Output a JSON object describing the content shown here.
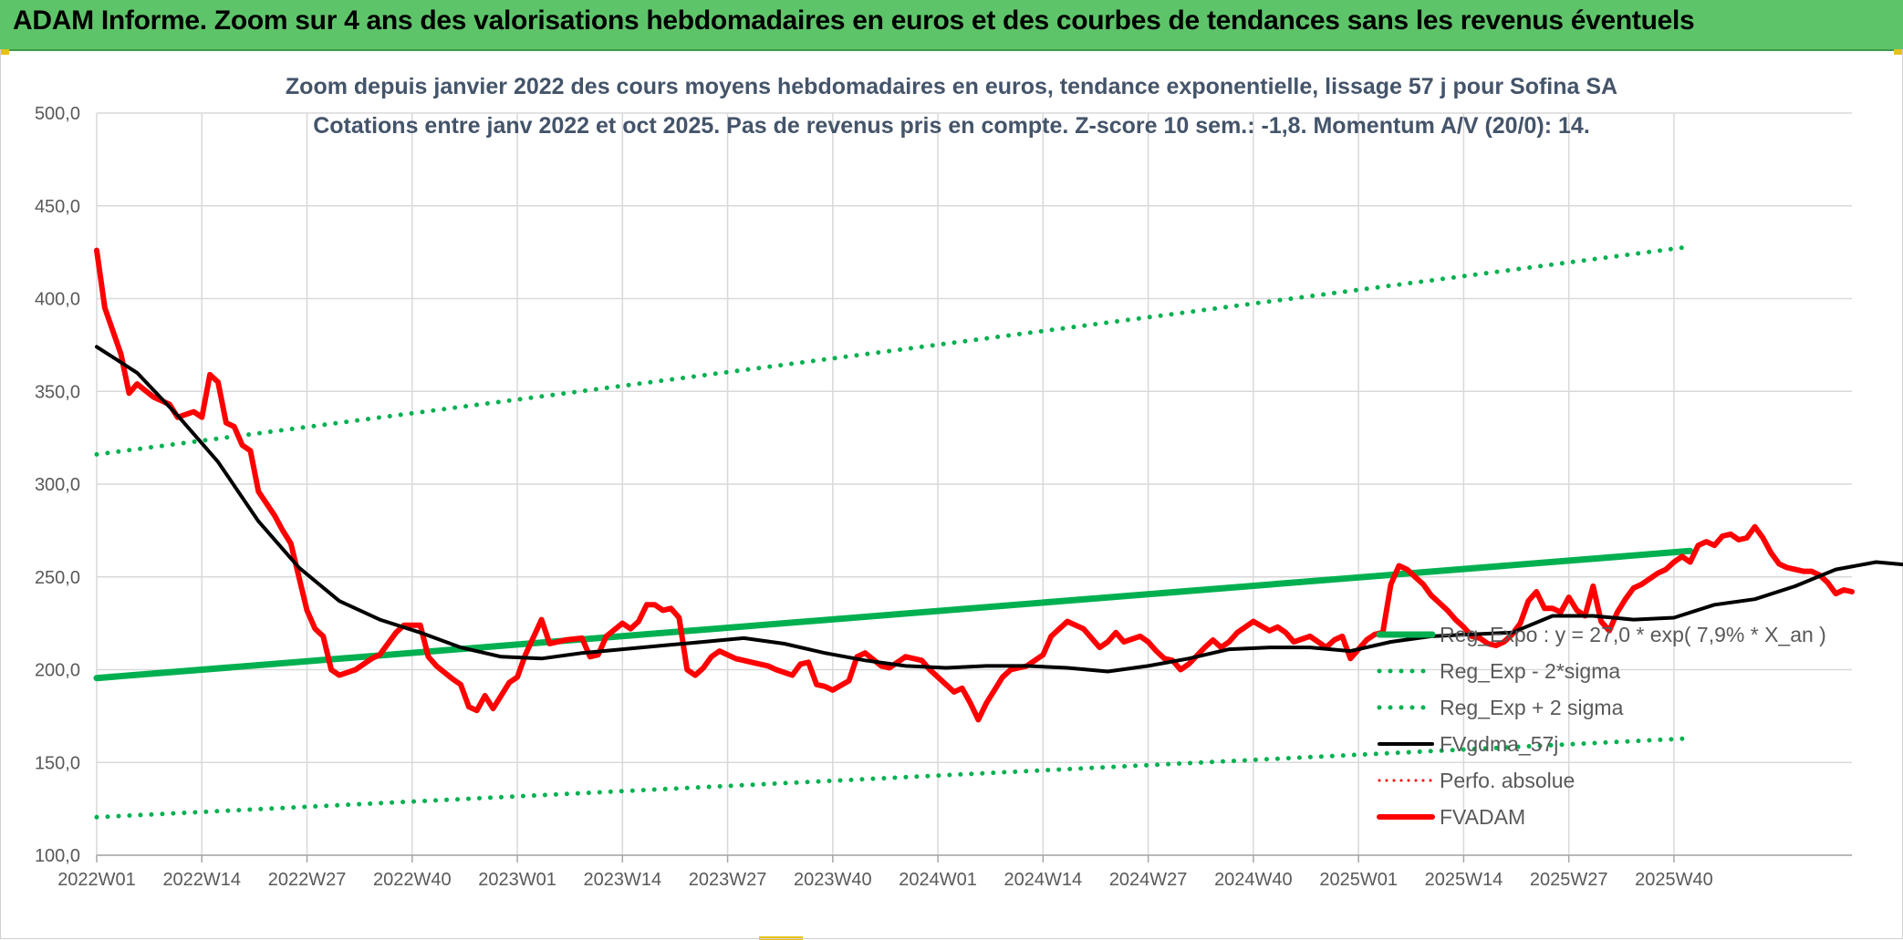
{
  "header": {
    "title": "ADAM Informe. Zoom sur 4 ans des valorisations hebdomadaires en euros et des courbes de tendances sans les revenus éventuels"
  },
  "colors": {
    "header_bg": "#5ec46a",
    "green": "#00b050",
    "red": "#ff0000",
    "black": "#000000",
    "grid": "#d9d9d9",
    "axis_text": "#595959",
    "title_text": "#44546a"
  },
  "chart_data": {
    "type": "line",
    "title": "Zoom depuis janvier 2022 des cours moyens hebdomadaires en euros, tendance exponentielle, lissage 57 j pour Sofina SA",
    "subtitle": "Cotations entre janv 2022 et oct 2025. Pas de revenus pris en compte. Z-score 10 sem.: -1,8. Momentum A/V (20/0): 14.",
    "xlabel": "",
    "ylabel": "",
    "ylim": [
      100,
      500
    ],
    "y_ticks": [
      "100,0",
      "150,0",
      "200,0",
      "250,0",
      "300,0",
      "350,0",
      "400,0",
      "450,0",
      "500,0"
    ],
    "x_ticks": [
      "2022W01",
      "2022W14",
      "2022W27",
      "2022W40",
      "2023W01",
      "2023W14",
      "2023W27",
      "2023W40",
      "2024W01",
      "2024W14",
      "2024W27",
      "2024W40",
      "2025W01",
      "2025W14",
      "2025W27",
      "2025W40"
    ],
    "x_count": 198,
    "grid": true,
    "legend_position": "right",
    "legend": [
      {
        "name": "Reg_Expo : y = 27,0 * exp( 7,9% *  X_an )",
        "style": "solid",
        "color": "#00b050",
        "width": 7
      },
      {
        "name": "Reg_Exp - 2*sigma",
        "style": "dotted",
        "color": "#00b050",
        "width": 5
      },
      {
        "name": "Reg_Exp + 2 sigma",
        "style": "dotted",
        "color": "#00b050",
        "width": 5
      },
      {
        "name": "FVgdma_57j",
        "style": "solid",
        "color": "#000000",
        "width": 4
      },
      {
        "name": "Perfo. absolue",
        "style": "dotted",
        "color": "#ff0000",
        "width": 3
      },
      {
        "name": "FVADAM",
        "style": "solid",
        "color": "#ff0000",
        "width": 6
      }
    ],
    "series": [
      {
        "name": "Reg_Expo : y = 27,0 * exp( 7,9% *  X_an )",
        "points": [
          [
            0,
            195.5
          ],
          [
            197,
            264
          ]
        ]
      },
      {
        "name": "Reg_Exp - 2*sigma",
        "points": [
          [
            0,
            120.5
          ],
          [
            197,
            163
          ]
        ]
      },
      {
        "name": "Reg_Exp + 2 sigma",
        "points": [
          [
            0,
            316
          ],
          [
            197,
            428
          ]
        ]
      },
      {
        "name": "FVgdma_57j",
        "points": [
          [
            0,
            374
          ],
          [
            5,
            360
          ],
          [
            10,
            337
          ],
          [
            15,
            312
          ],
          [
            20,
            280
          ],
          [
            25,
            255
          ],
          [
            30,
            237
          ],
          [
            35,
            227
          ],
          [
            40,
            220
          ],
          [
            45,
            212
          ],
          [
            50,
            207
          ],
          [
            55,
            206
          ],
          [
            60,
            209
          ],
          [
            65,
            211
          ],
          [
            70,
            213
          ],
          [
            75,
            215
          ],
          [
            80,
            217
          ],
          [
            85,
            214
          ],
          [
            90,
            209
          ],
          [
            95,
            205
          ],
          [
            100,
            202
          ],
          [
            105,
            201
          ],
          [
            110,
            202
          ],
          [
            115,
            202
          ],
          [
            120,
            201
          ],
          [
            125,
            199
          ],
          [
            130,
            202
          ],
          [
            135,
            206
          ],
          [
            140,
            211
          ],
          [
            145,
            212
          ],
          [
            150,
            212
          ],
          [
            155,
            210
          ],
          [
            160,
            215
          ],
          [
            165,
            218
          ],
          [
            170,
            219
          ],
          [
            175,
            220
          ],
          [
            180,
            229
          ],
          [
            185,
            229
          ],
          [
            190,
            227
          ],
          [
            195,
            228
          ],
          [
            200,
            235
          ],
          [
            205,
            238
          ],
          [
            210,
            245
          ],
          [
            215,
            254
          ],
          [
            220,
            258
          ],
          [
            225,
            256
          ],
          [
            230,
            248
          ],
          [
            232,
            247
          ]
        ]
      },
      {
        "name": "FVADAM",
        "points": [
          [
            0,
            426
          ],
          [
            1,
            395
          ],
          [
            3,
            370
          ],
          [
            4,
            349
          ],
          [
            5,
            354
          ],
          [
            7,
            347
          ],
          [
            9,
            343
          ],
          [
            10,
            336
          ],
          [
            12,
            339
          ],
          [
            13,
            336
          ],
          [
            14,
            359
          ],
          [
            15,
            355
          ],
          [
            16,
            333
          ],
          [
            17,
            331
          ],
          [
            18,
            321
          ],
          [
            19,
            318
          ],
          [
            20,
            296
          ],
          [
            22,
            283
          ],
          [
            23,
            275
          ],
          [
            24,
            268
          ],
          [
            26,
            232
          ],
          [
            27,
            222
          ],
          [
            28,
            218
          ],
          [
            29,
            200
          ],
          [
            30,
            197
          ],
          [
            32,
            200
          ],
          [
            34,
            206
          ],
          [
            35,
            208
          ],
          [
            37,
            220
          ],
          [
            38,
            224
          ],
          [
            40,
            224
          ],
          [
            41,
            207
          ],
          [
            42,
            202
          ],
          [
            44,
            195
          ],
          [
            45,
            192
          ],
          [
            46,
            180
          ],
          [
            47,
            178
          ],
          [
            48,
            186
          ],
          [
            49,
            179
          ],
          [
            51,
            193
          ],
          [
            52,
            196
          ],
          [
            53,
            208
          ],
          [
            55,
            227
          ],
          [
            56,
            214
          ],
          [
            58,
            216
          ],
          [
            60,
            217
          ],
          [
            61,
            207
          ],
          [
            62,
            208
          ],
          [
            63,
            218
          ],
          [
            65,
            225
          ],
          [
            66,
            222
          ],
          [
            67,
            226
          ],
          [
            68,
            235
          ],
          [
            69,
            235
          ],
          [
            70,
            232
          ],
          [
            71,
            233
          ],
          [
            72,
            228
          ],
          [
            73,
            200
          ],
          [
            74,
            197
          ],
          [
            75,
            201
          ],
          [
            76,
            207
          ],
          [
            77,
            210
          ],
          [
            79,
            206
          ],
          [
            81,
            204
          ],
          [
            83,
            202
          ],
          [
            84,
            200
          ],
          [
            86,
            197
          ],
          [
            87,
            203
          ],
          [
            88,
            204
          ],
          [
            89,
            192
          ],
          [
            90,
            191
          ],
          [
            91,
            189
          ],
          [
            93,
            194
          ],
          [
            94,
            207
          ],
          [
            95,
            209
          ],
          [
            97,
            202
          ],
          [
            98,
            201
          ],
          [
            100,
            207
          ],
          [
            102,
            205
          ],
          [
            103,
            200
          ],
          [
            105,
            192
          ],
          [
            106,
            188
          ],
          [
            107,
            190
          ],
          [
            108,
            182
          ],
          [
            109,
            173
          ],
          [
            110,
            182
          ],
          [
            112,
            196
          ],
          [
            113,
            200
          ],
          [
            115,
            202
          ],
          [
            117,
            208
          ],
          [
            118,
            218
          ],
          [
            120,
            226
          ],
          [
            122,
            222
          ],
          [
            124,
            212
          ],
          [
            125,
            215
          ],
          [
            126,
            220
          ],
          [
            127,
            215
          ],
          [
            129,
            218
          ],
          [
            130,
            215
          ],
          [
            131,
            210
          ],
          [
            132,
            206
          ],
          [
            133,
            205
          ],
          [
            134,
            200
          ],
          [
            135,
            203
          ],
          [
            137,
            212
          ],
          [
            138,
            216
          ],
          [
            139,
            212
          ],
          [
            140,
            215
          ],
          [
            141,
            220
          ],
          [
            143,
            226
          ],
          [
            145,
            221
          ],
          [
            146,
            223
          ],
          [
            147,
            220
          ],
          [
            148,
            215
          ],
          [
            150,
            218
          ],
          [
            152,
            212
          ],
          [
            153,
            216
          ],
          [
            154,
            218
          ],
          [
            155,
            206
          ],
          [
            156,
            211
          ],
          [
            157,
            216
          ],
          [
            158,
            219
          ],
          [
            159,
            220
          ],
          [
            160,
            246
          ],
          [
            161,
            256
          ],
          [
            162,
            254
          ],
          [
            163,
            250
          ],
          [
            164,
            246
          ],
          [
            165,
            240
          ],
          [
            167,
            232
          ],
          [
            168,
            227
          ],
          [
            169,
            223
          ],
          [
            170,
            218
          ],
          [
            171,
            217
          ],
          [
            172,
            214
          ],
          [
            173,
            213
          ],
          [
            174,
            215
          ],
          [
            175,
            219
          ],
          [
            176,
            225
          ],
          [
            177,
            237
          ],
          [
            178,
            242
          ],
          [
            179,
            233
          ],
          [
            180,
            233
          ],
          [
            181,
            231
          ],
          [
            182,
            239
          ],
          [
            183,
            232
          ],
          [
            184,
            229
          ],
          [
            185,
            245
          ],
          [
            186,
            226
          ],
          [
            187,
            221
          ],
          [
            188,
            231
          ],
          [
            189,
            238
          ],
          [
            190,
            244
          ],
          [
            191,
            246
          ],
          [
            192,
            249
          ],
          [
            193,
            252
          ],
          [
            194,
            254
          ],
          [
            195,
            258
          ],
          [
            196,
            261
          ],
          [
            197,
            258
          ],
          [
            198,
            267
          ],
          [
            199,
            269
          ],
          [
            200,
            267
          ],
          [
            201,
            272
          ],
          [
            202,
            273
          ],
          [
            203,
            270
          ],
          [
            204,
            271
          ],
          [
            205,
            277
          ],
          [
            206,
            271
          ],
          [
            207,
            263
          ],
          [
            208,
            257
          ],
          [
            209,
            255
          ],
          [
            210,
            254
          ],
          [
            211,
            253
          ],
          [
            212,
            253
          ],
          [
            213,
            251
          ],
          [
            214,
            247
          ],
          [
            215,
            241
          ],
          [
            216,
            243
          ],
          [
            217,
            242
          ]
        ]
      }
    ]
  }
}
